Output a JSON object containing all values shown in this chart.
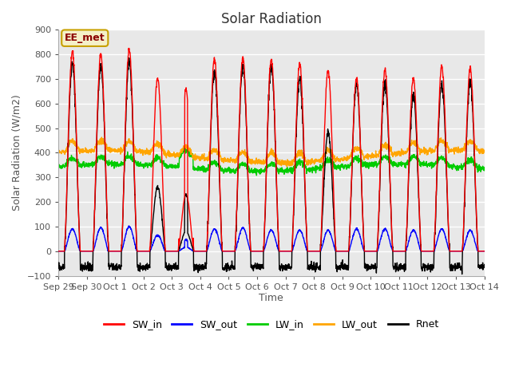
{
  "title": "Solar Radiation",
  "xlabel": "Time",
  "ylabel": "Solar Radiation (W/m2)",
  "ylim": [
    -100,
    900
  ],
  "yticks": [
    -100,
    0,
    100,
    200,
    300,
    400,
    500,
    600,
    700,
    800,
    900
  ],
  "annotation_text": "EE_met",
  "annotation_color": "#8B0000",
  "annotation_bg": "#F5F0C8",
  "annotation_border": "#C8A000",
  "series_colors": {
    "SW_in": "#FF0000",
    "SW_out": "#0000FF",
    "LW_in": "#00CC00",
    "LW_out": "#FFA500",
    "Rnet": "#000000"
  },
  "fig_bg_color": "#FFFFFF",
  "plot_bg_color": "#E8E8E8",
  "grid_color": "#FFFFFF",
  "n_days": 15,
  "xtick_labels": [
    "Sep 29",
    "Sep 30",
    "Oct 1",
    "Oct 2",
    "Oct 3",
    "Oct 4",
    "Oct 5",
    "Oct 6",
    "Oct 7",
    "Oct 8",
    "Oct 9",
    "Oct 10",
    "Oct 11",
    "Oct 12",
    "Oct 13",
    "Oct 14"
  ],
  "sw_in_peaks": [
    810,
    800,
    820,
    700,
    660,
    780,
    785,
    780,
    760,
    735,
    700,
    735,
    700,
    750,
    740
  ],
  "sw_out_peaks": [
    90,
    95,
    100,
    65,
    45,
    90,
    95,
    85,
    85,
    85,
    90,
    90,
    85,
    90,
    85
  ],
  "rnet_peaks": [
    760,
    750,
    770,
    260,
    230,
    730,
    750,
    750,
    700,
    480,
    680,
    680,
    630,
    680,
    690
  ],
  "lw_in_base": 340,
  "lw_out_base": 385,
  "rnet_night": -65
}
